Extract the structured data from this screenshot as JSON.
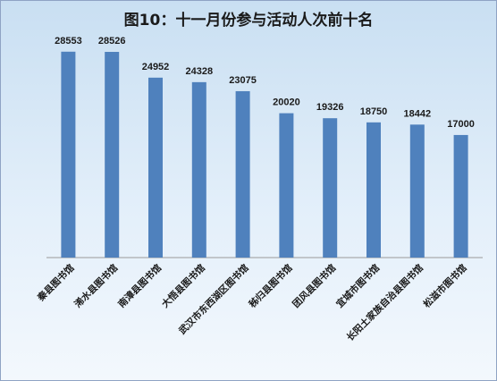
{
  "chart_data": {
    "type": "bar",
    "title": "图10：十一月份参与活动人次前十名",
    "categories": [
      "秦县图书馆",
      "浠水县图书馆",
      "南漳县图书馆",
      "大悟县图书馆",
      "武汉市东西湖区图书馆",
      "秭归县图书馆",
      "团风县图书馆",
      "宜城市图书馆",
      "长阳土家族自治县图书馆",
      "松滋市图书馆"
    ],
    "values": [
      28553,
      28526,
      24952,
      24328,
      23075,
      20020,
      19326,
      18750,
      18442,
      17000
    ],
    "value_labels": [
      "28553",
      "28526",
      "24952",
      "24328",
      "23075",
      "20020",
      "19326",
      "18750",
      "18442",
      "17000"
    ],
    "ylim": [
      0,
      32000
    ],
    "grid": false,
    "legend": "none",
    "colors": {
      "bar": "#4f81bd",
      "axis": "#9a9a9a"
    }
  }
}
